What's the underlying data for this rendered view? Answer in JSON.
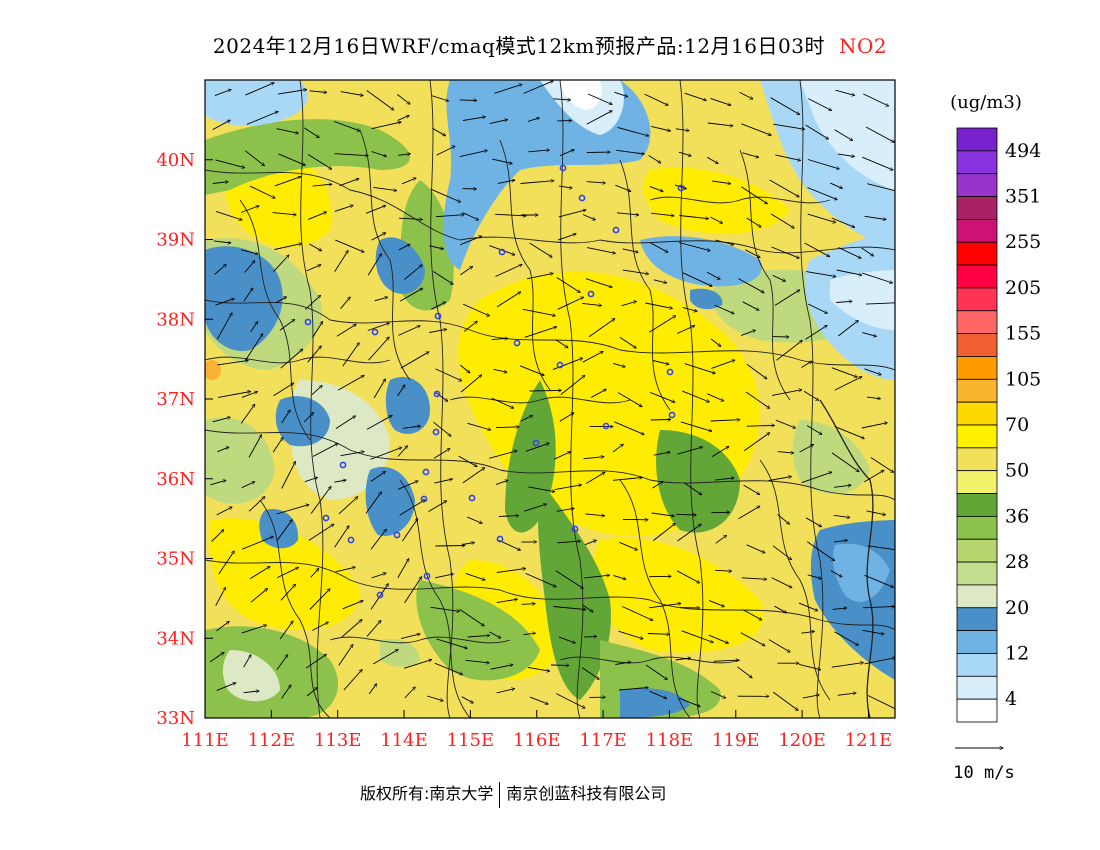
{
  "title": {
    "main": "2024年12月16日WRF/cmaq模式12km预报产品:12月16日03时",
    "species": "NO2"
  },
  "legend": {
    "unit": "(ug/m3)",
    "levels": [
      {
        "label": "",
        "color": "#ffffff"
      },
      {
        "label": "4",
        "color": "#d9eefb"
      },
      {
        "label": "",
        "color": "#a8d8f5"
      },
      {
        "label": "12",
        "color": "#6fb3e4"
      },
      {
        "label": "",
        "color": "#4a90c8"
      },
      {
        "label": "20",
        "color": "#dde8c4"
      },
      {
        "label": "",
        "color": "#c3dc8e"
      },
      {
        "label": "28",
        "color": "#b6d56f"
      },
      {
        "label": "",
        "color": "#8cc14c"
      },
      {
        "label": "36",
        "color": "#63a638"
      },
      {
        "label": "",
        "color": "#f2f26a"
      },
      {
        "label": "50",
        "color": "#f3e05a"
      },
      {
        "label": "",
        "color": "#fff000"
      },
      {
        "label": "70",
        "color": "#ffd800"
      },
      {
        "label": "",
        "color": "#f9b530"
      },
      {
        "label": "105",
        "color": "#ff9b00"
      },
      {
        "label": "",
        "color": "#f06030"
      },
      {
        "label": "155",
        "color": "#ff6666"
      },
      {
        "label": "",
        "color": "#ff3355"
      },
      {
        "label": "205",
        "color": "#ff0044"
      },
      {
        "label": "",
        "color": "#ff0000"
      },
      {
        "label": "255",
        "color": "#cc1177"
      },
      {
        "label": "",
        "color": "#aa2266"
      },
      {
        "label": "351",
        "color": "#9933cc"
      },
      {
        "label": "",
        "color": "#8833dd"
      },
      {
        "label": "494",
        "color": "#7722cc"
      }
    ],
    "scale_legend": [
      {
        "label": "494",
        "color": "#8d3ad6"
      },
      {
        "label": "351",
        "color": "#a8326e"
      },
      {
        "label": "255",
        "color": "#ff0022"
      },
      {
        "label": "205",
        "color": "#ff6a6a"
      },
      {
        "label": "155",
        "color": "#f26530"
      },
      {
        "label": "105",
        "color": "#fbb132"
      },
      {
        "label": "70",
        "color": "#ffec00"
      },
      {
        "label": "50",
        "color": "#f1f05c"
      },
      {
        "label": "36",
        "color": "#6fb03c"
      },
      {
        "label": "28",
        "color": "#bed97e"
      },
      {
        "label": "20",
        "color": "#4e8ec8"
      },
      {
        "label": "12",
        "color": "#a4d8f4"
      },
      {
        "label": "4",
        "color": "#ffffff"
      }
    ],
    "wind_scale": "10 m/s"
  },
  "axes": {
    "x_ticks": [
      "111E",
      "112E",
      "113E",
      "114E",
      "115E",
      "116E",
      "117E",
      "118E",
      "119E",
      "120E",
      "121E"
    ],
    "y_ticks": [
      "33N",
      "34N",
      "35N",
      "36N",
      "37N",
      "38N",
      "39N",
      "40N"
    ]
  },
  "map": {
    "lon_range": [
      111,
      121.4
    ],
    "lat_range": [
      33,
      41
    ],
    "colors": {
      "very_low": "#ffffff",
      "low_light_blue": "#d9eefb",
      "low_blue": "#a8d8f5",
      "mid_blue": "#6fb3e4",
      "dark_blue": "#4a90c8",
      "pale_green": "#dde8c4",
      "light_green": "#bed97e",
      "green": "#8cc14c",
      "dark_green": "#63a638",
      "pale_yellow": "#f1f05c",
      "yellow": "#ffec00",
      "orange": "#fbb132"
    }
  },
  "footer": {
    "owner": "版权所有:南京大学",
    "company": "南京创蓝科技有限公司"
  }
}
